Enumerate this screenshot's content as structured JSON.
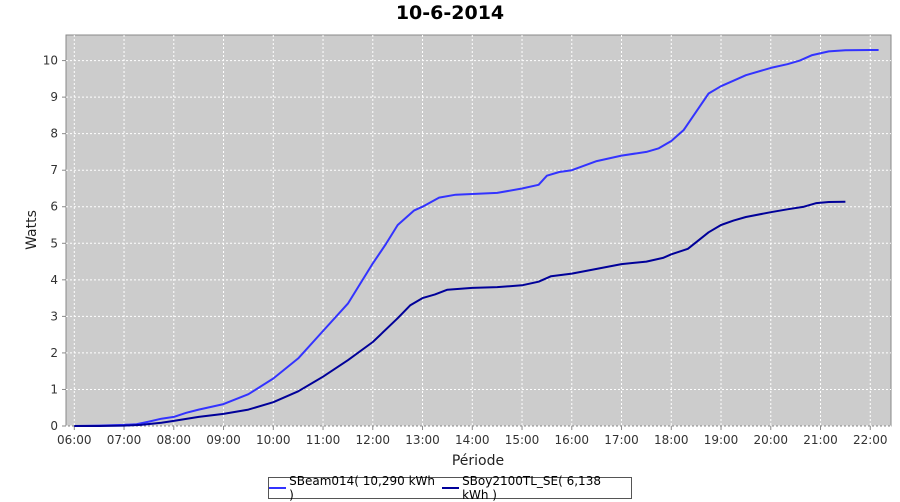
{
  "chart_data": {
    "type": "line",
    "title": "10-6-2014",
    "xlabel": "Période",
    "ylabel": "Watts",
    "x_ticks": [
      "06:00",
      "07:00",
      "08:00",
      "09:00",
      "10:00",
      "11:00",
      "12:00",
      "13:00",
      "14:00",
      "15:00",
      "16:00",
      "17:00",
      "18:00",
      "19:00",
      "20:00",
      "21:00",
      "22:00"
    ],
    "y_ticks": [
      0,
      1,
      2,
      3,
      4,
      5,
      6,
      7,
      8,
      9,
      10
    ],
    "xlim": [
      "05:50",
      "22:25"
    ],
    "ylim": [
      0,
      10.7
    ],
    "grid": true,
    "background": "#cccccc",
    "legend_position": "bottom",
    "series": [
      {
        "name": "SBeam014( 10,290 kWh )",
        "color": "#3333ff",
        "points": [
          [
            "06:00",
            0.0
          ],
          [
            "06:30",
            0.01
          ],
          [
            "07:00",
            0.03
          ],
          [
            "07:15",
            0.05
          ],
          [
            "07:30",
            0.12
          ],
          [
            "07:45",
            0.2
          ],
          [
            "08:00",
            0.25
          ],
          [
            "08:15",
            0.36
          ],
          [
            "08:30",
            0.45
          ],
          [
            "09:00",
            0.6
          ],
          [
            "09:30",
            0.87
          ],
          [
            "10:00",
            1.3
          ],
          [
            "10:30",
            1.85
          ],
          [
            "11:00",
            2.6
          ],
          [
            "11:30",
            3.35
          ],
          [
            "12:00",
            4.45
          ],
          [
            "12:15",
            4.95
          ],
          [
            "12:30",
            5.5
          ],
          [
            "12:50",
            5.9
          ],
          [
            "13:00",
            6.0
          ],
          [
            "13:20",
            6.25
          ],
          [
            "13:40",
            6.33
          ],
          [
            "14:00",
            6.35
          ],
          [
            "14:30",
            6.38
          ],
          [
            "15:00",
            6.5
          ],
          [
            "15:20",
            6.6
          ],
          [
            "15:30",
            6.85
          ],
          [
            "15:45",
            6.95
          ],
          [
            "16:00",
            7.0
          ],
          [
            "16:30",
            7.25
          ],
          [
            "17:00",
            7.4
          ],
          [
            "17:30",
            7.5
          ],
          [
            "17:45",
            7.6
          ],
          [
            "18:00",
            7.8
          ],
          [
            "18:15",
            8.1
          ],
          [
            "18:30",
            8.6
          ],
          [
            "18:45",
            9.1
          ],
          [
            "19:00",
            9.3
          ],
          [
            "19:15",
            9.45
          ],
          [
            "19:30",
            9.6
          ],
          [
            "20:00",
            9.8
          ],
          [
            "20:20",
            9.9
          ],
          [
            "20:35",
            10.0
          ],
          [
            "20:50",
            10.15
          ],
          [
            "21:10",
            10.25
          ],
          [
            "21:30",
            10.28
          ],
          [
            "22:00",
            10.29
          ],
          [
            "22:10",
            10.29
          ]
        ]
      },
      {
        "name": "SBoy2100TL_SE( 6,138 kWh )",
        "color": "#000099",
        "points": [
          [
            "06:00",
            0.0
          ],
          [
            "06:30",
            0.0
          ],
          [
            "07:00",
            0.01
          ],
          [
            "07:20",
            0.03
          ],
          [
            "07:45",
            0.09
          ],
          [
            "08:00",
            0.14
          ],
          [
            "08:30",
            0.25
          ],
          [
            "09:00",
            0.33
          ],
          [
            "09:30",
            0.45
          ],
          [
            "10:00",
            0.65
          ],
          [
            "10:30",
            0.95
          ],
          [
            "11:00",
            1.35
          ],
          [
            "11:30",
            1.8
          ],
          [
            "12:00",
            2.3
          ],
          [
            "12:30",
            2.95
          ],
          [
            "12:45",
            3.3
          ],
          [
            "13:00",
            3.5
          ],
          [
            "13:15",
            3.6
          ],
          [
            "13:30",
            3.73
          ],
          [
            "14:00",
            3.78
          ],
          [
            "14:30",
            3.8
          ],
          [
            "15:00",
            3.85
          ],
          [
            "15:20",
            3.95
          ],
          [
            "15:35",
            4.1
          ],
          [
            "16:00",
            4.17
          ],
          [
            "16:30",
            4.3
          ],
          [
            "17:00",
            4.43
          ],
          [
            "17:30",
            4.5
          ],
          [
            "17:50",
            4.6
          ],
          [
            "18:00",
            4.7
          ],
          [
            "18:20",
            4.85
          ],
          [
            "18:45",
            5.3
          ],
          [
            "19:00",
            5.5
          ],
          [
            "19:15",
            5.62
          ],
          [
            "19:30",
            5.72
          ],
          [
            "20:00",
            5.85
          ],
          [
            "20:20",
            5.93
          ],
          [
            "20:40",
            6.0
          ],
          [
            "20:55",
            6.1
          ],
          [
            "21:10",
            6.13
          ],
          [
            "21:30",
            6.138
          ]
        ]
      }
    ]
  }
}
